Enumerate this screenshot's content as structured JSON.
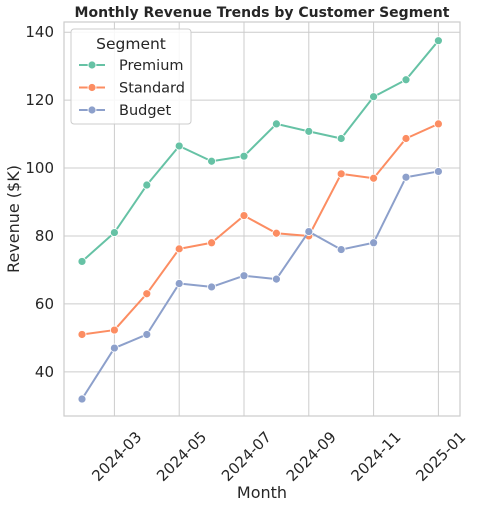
{
  "chart_data": {
    "type": "line",
    "title": "Monthly Revenue Trends by Customer Segment",
    "xlabel": "Month",
    "ylabel": "Revenue ($K)",
    "x": [
      "2024-02",
      "2024-03",
      "2024-04",
      "2024-05",
      "2024-06",
      "2024-07",
      "2024-08",
      "2024-09",
      "2024-10",
      "2024-11",
      "2024-12",
      "2025-01"
    ],
    "x_tick_labels": [
      "2024-03",
      "2024-05",
      "2024-07",
      "2024-09",
      "2024-11",
      "2025-01"
    ],
    "y_ticks": [
      40,
      60,
      80,
      100,
      120,
      140
    ],
    "ylim": [
      27,
      143
    ],
    "grid": true,
    "legend": {
      "title": "Segment",
      "placement": "top-left"
    },
    "series": [
      {
        "name": "Premium",
        "color": "#66c2a5",
        "values": [
          72.5,
          81,
          95,
          106.5,
          102,
          103.5,
          113,
          110.8,
          108.7,
          121,
          126,
          137.5
        ]
      },
      {
        "name": "Standard",
        "color": "#fc8d62",
        "values": [
          51,
          52.3,
          63,
          76.2,
          78,
          86,
          80.8,
          80,
          98.3,
          97,
          108.7,
          113
        ]
      },
      {
        "name": "Budget",
        "color": "#8da0cb",
        "values": [
          32,
          47,
          51,
          66,
          65,
          68.3,
          67.3,
          81.3,
          76,
          78,
          97.3,
          99
        ]
      }
    ]
  }
}
